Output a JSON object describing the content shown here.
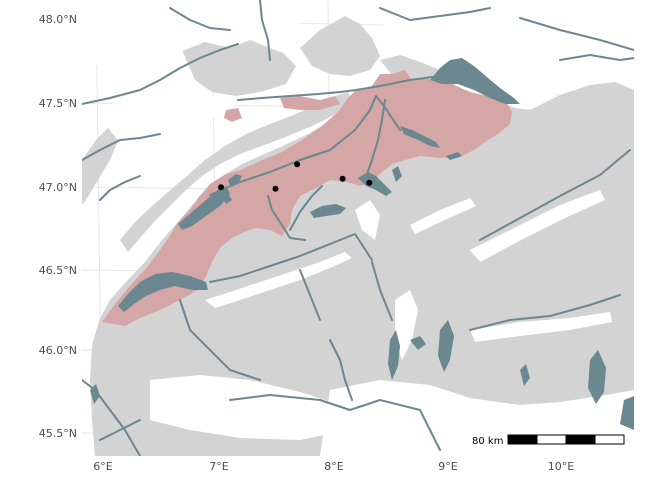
{
  "map": {
    "colors": {
      "background": "#ffffff",
      "terrain": "#d3d3d3",
      "snow_lowland": "#ffffff",
      "region_fill": "#d4a6a6",
      "lakes": "#6b8790",
      "rivers": "#6b8790",
      "graticule": "#e6e6e6",
      "points": "#000000",
      "axis_text": "#4d4d4d"
    },
    "y_axis_labels": [
      "48.0°N",
      "47.5°N",
      "47.0°N",
      "46.5°N",
      "46.0°N",
      "45.5°N"
    ],
    "x_axis_labels": [
      "6°E",
      "7°E",
      "8°E",
      "9°E",
      "10°E"
    ],
    "points": [
      {
        "lon": 7.0,
        "lat": 47.01
      },
      {
        "lon": 7.47,
        "lat": 47.01
      },
      {
        "lon": 7.66,
        "lat": 47.16
      },
      {
        "lon": 8.05,
        "lat": 47.08
      },
      {
        "lon": 8.28,
        "lat": 47.06
      }
    ],
    "scale_bar": {
      "label": "80 km",
      "segments": 4
    }
  }
}
